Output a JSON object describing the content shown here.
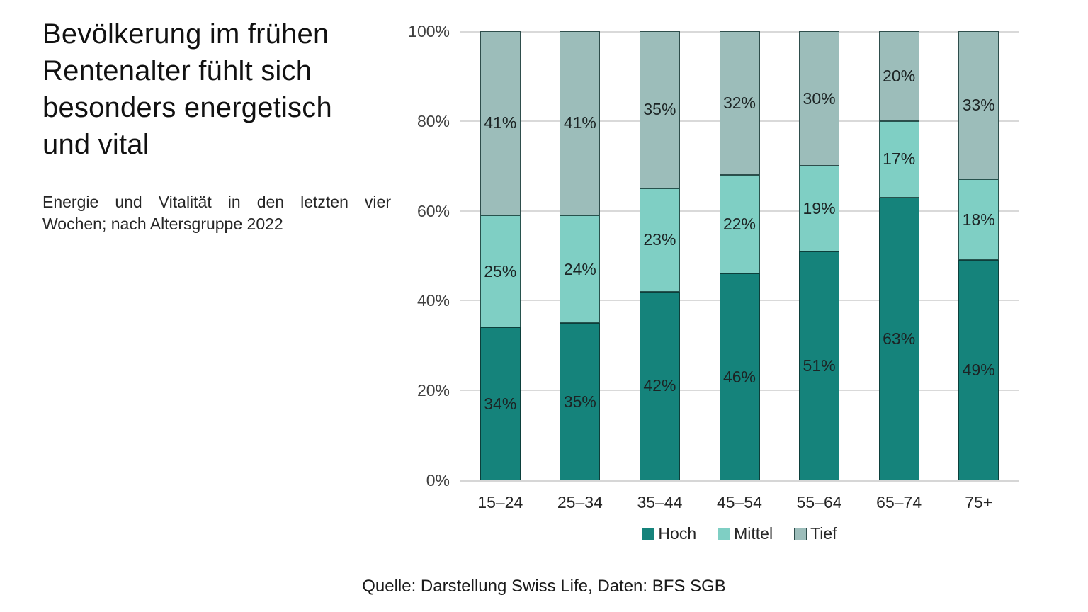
{
  "header": {
    "title_lines": [
      "Bevölkerung im frühen",
      "Rentenalter fühlt sich",
      "besonders energetisch",
      "und vital"
    ],
    "subtitle_lines": [
      "Energie und Vitalität in den letzten vier",
      "Wochen; nach Altersgruppe 2022"
    ]
  },
  "chart_data": {
    "type": "bar",
    "stacked": true,
    "title": "",
    "xlabel": "",
    "ylabel": "",
    "ylim": [
      0,
      100
    ],
    "grid": true,
    "legend_position": "bottom",
    "yticks": [
      {
        "value": 0,
        "label": "0%"
      },
      {
        "value": 20,
        "label": "20%"
      },
      {
        "value": 40,
        "label": "40%"
      },
      {
        "value": 60,
        "label": "60%"
      },
      {
        "value": 80,
        "label": "80%"
      },
      {
        "value": 100,
        "label": "100%"
      }
    ],
    "categories": [
      "15–24",
      "25–34",
      "35–44",
      "45–54",
      "55–64",
      "65–74",
      "75+"
    ],
    "series": [
      {
        "name": "Hoch",
        "color": "#15837B",
        "values": [
          34,
          35,
          42,
          46,
          51,
          63,
          49
        ]
      },
      {
        "name": "Mittel",
        "color": "#7FCFC4",
        "values": [
          25,
          24,
          23,
          22,
          19,
          17,
          18
        ]
      },
      {
        "name": "Tief",
        "color": "#9CBDBA",
        "values": [
          41,
          41,
          35,
          32,
          30,
          20,
          33
        ]
      }
    ],
    "value_label_suffix": "%"
  },
  "footer": {
    "source": "Quelle: Darstellung Swiss Life, Daten: BFS SGB"
  },
  "colors": {
    "hoch": "#15837B",
    "mittel": "#7FCFC4",
    "tief": "#9CBDBA",
    "gridline": "#D9D9D9",
    "text": "#1A1A1A",
    "tick_text": "#404040"
  }
}
